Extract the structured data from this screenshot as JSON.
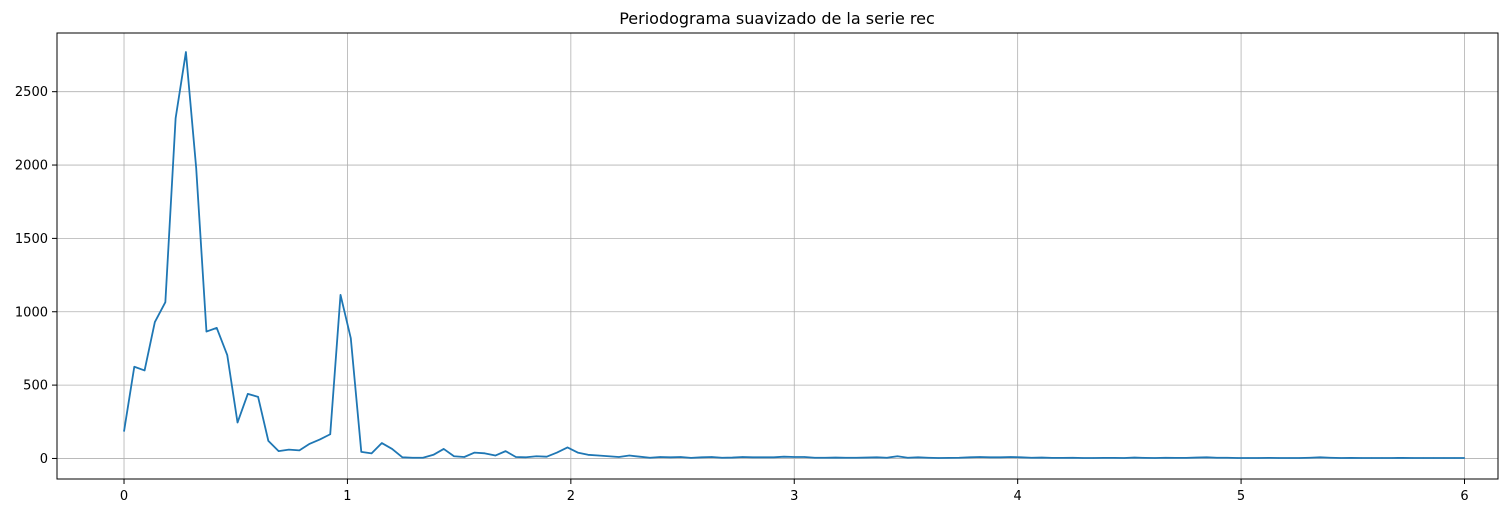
{
  "chart_data": {
    "type": "line",
    "title": "Periodograma suavizado de la serie rec",
    "xlabel": "",
    "ylabel": "",
    "xlim": [
      -0.3,
      6.15
    ],
    "ylim": [
      -140,
      2900
    ],
    "xticks": [
      0,
      1,
      2,
      3,
      4,
      5,
      6
    ],
    "xtick_labels": [
      "0",
      "1",
      "2",
      "3",
      "4",
      "5",
      "6"
    ],
    "yticks": [
      0,
      500,
      1000,
      1500,
      2000,
      2500
    ],
    "ytick_labels": [
      "0",
      "500",
      "1000",
      "1500",
      "2000",
      "2500"
    ],
    "grid": true,
    "series": [
      {
        "color": "#1f77b4",
        "x": [
          0,
          0.046,
          0.092,
          0.138,
          0.185,
          0.231,
          0.277,
          0.323,
          0.369,
          0.415,
          0.462,
          0.508,
          0.554,
          0.6,
          0.646,
          0.692,
          0.738,
          0.785,
          0.831,
          0.877,
          0.923,
          0.969,
          1.015,
          1.062,
          1.108,
          1.154,
          1.2,
          1.246,
          1.292,
          1.338,
          1.385,
          1.431,
          1.477,
          1.523,
          1.569,
          1.615,
          1.662,
          1.708,
          1.754,
          1.8,
          1.846,
          1.892,
          1.938,
          1.985,
          2.031,
          2.077,
          2.123,
          2.169,
          2.215,
          2.262,
          2.308,
          2.354,
          2.4,
          2.446,
          2.492,
          2.538,
          2.585,
          2.631,
          2.677,
          2.723,
          2.769,
          2.815,
          2.862,
          2.908,
          2.954,
          3.0,
          3.046,
          3.092,
          3.138,
          3.185,
          3.231,
          3.277,
          3.323,
          3.369,
          3.415,
          3.462,
          3.508,
          3.554,
          3.6,
          3.646,
          3.692,
          3.738,
          3.785,
          3.831,
          3.877,
          3.923,
          3.969,
          4.015,
          4.062,
          4.108,
          4.154,
          4.2,
          4.246,
          4.292,
          4.338,
          4.385,
          4.431,
          4.477,
          4.523,
          4.569,
          4.615,
          4.662,
          4.708,
          4.754,
          4.8,
          4.846,
          4.892,
          4.938,
          4.985,
          5.031,
          5.077,
          5.123,
          5.169,
          5.215,
          5.262,
          5.308,
          5.354,
          5.4,
          5.446,
          5.492,
          5.538,
          5.585,
          5.631,
          5.677,
          5.723,
          5.769,
          5.815,
          5.862,
          5.908,
          5.954,
          6.0
        ],
        "y": [
          185,
          625,
          600,
          930,
          1065,
          2320,
          2770,
          1980,
          865,
          890,
          705,
          245,
          440,
          420,
          120,
          50,
          60,
          55,
          100,
          130,
          165,
          1115,
          820,
          45,
          35,
          105,
          65,
          8,
          5,
          5,
          25,
          65,
          15,
          10,
          40,
          35,
          20,
          50,
          10,
          8,
          15,
          12,
          40,
          75,
          40,
          25,
          20,
          15,
          10,
          20,
          12,
          5,
          10,
          8,
          10,
          4,
          8,
          10,
          5,
          6,
          10,
          8,
          8,
          8,
          12,
          10,
          10,
          5,
          5,
          6,
          5,
          5,
          6,
          8,
          5,
          15,
          5,
          8,
          5,
          3,
          4,
          5,
          8,
          10,
          8,
          8,
          10,
          8,
          5,
          6,
          4,
          4,
          5,
          3,
          3,
          4,
          4,
          3,
          6,
          4,
          3,
          5,
          4,
          4,
          6,
          8,
          5,
          5,
          3,
          3,
          3,
          4,
          3,
          3,
          3,
          5,
          8,
          5,
          3,
          4,
          3,
          3,
          3,
          3,
          4,
          3,
          3,
          3,
          3,
          3,
          3
        ]
      }
    ]
  }
}
